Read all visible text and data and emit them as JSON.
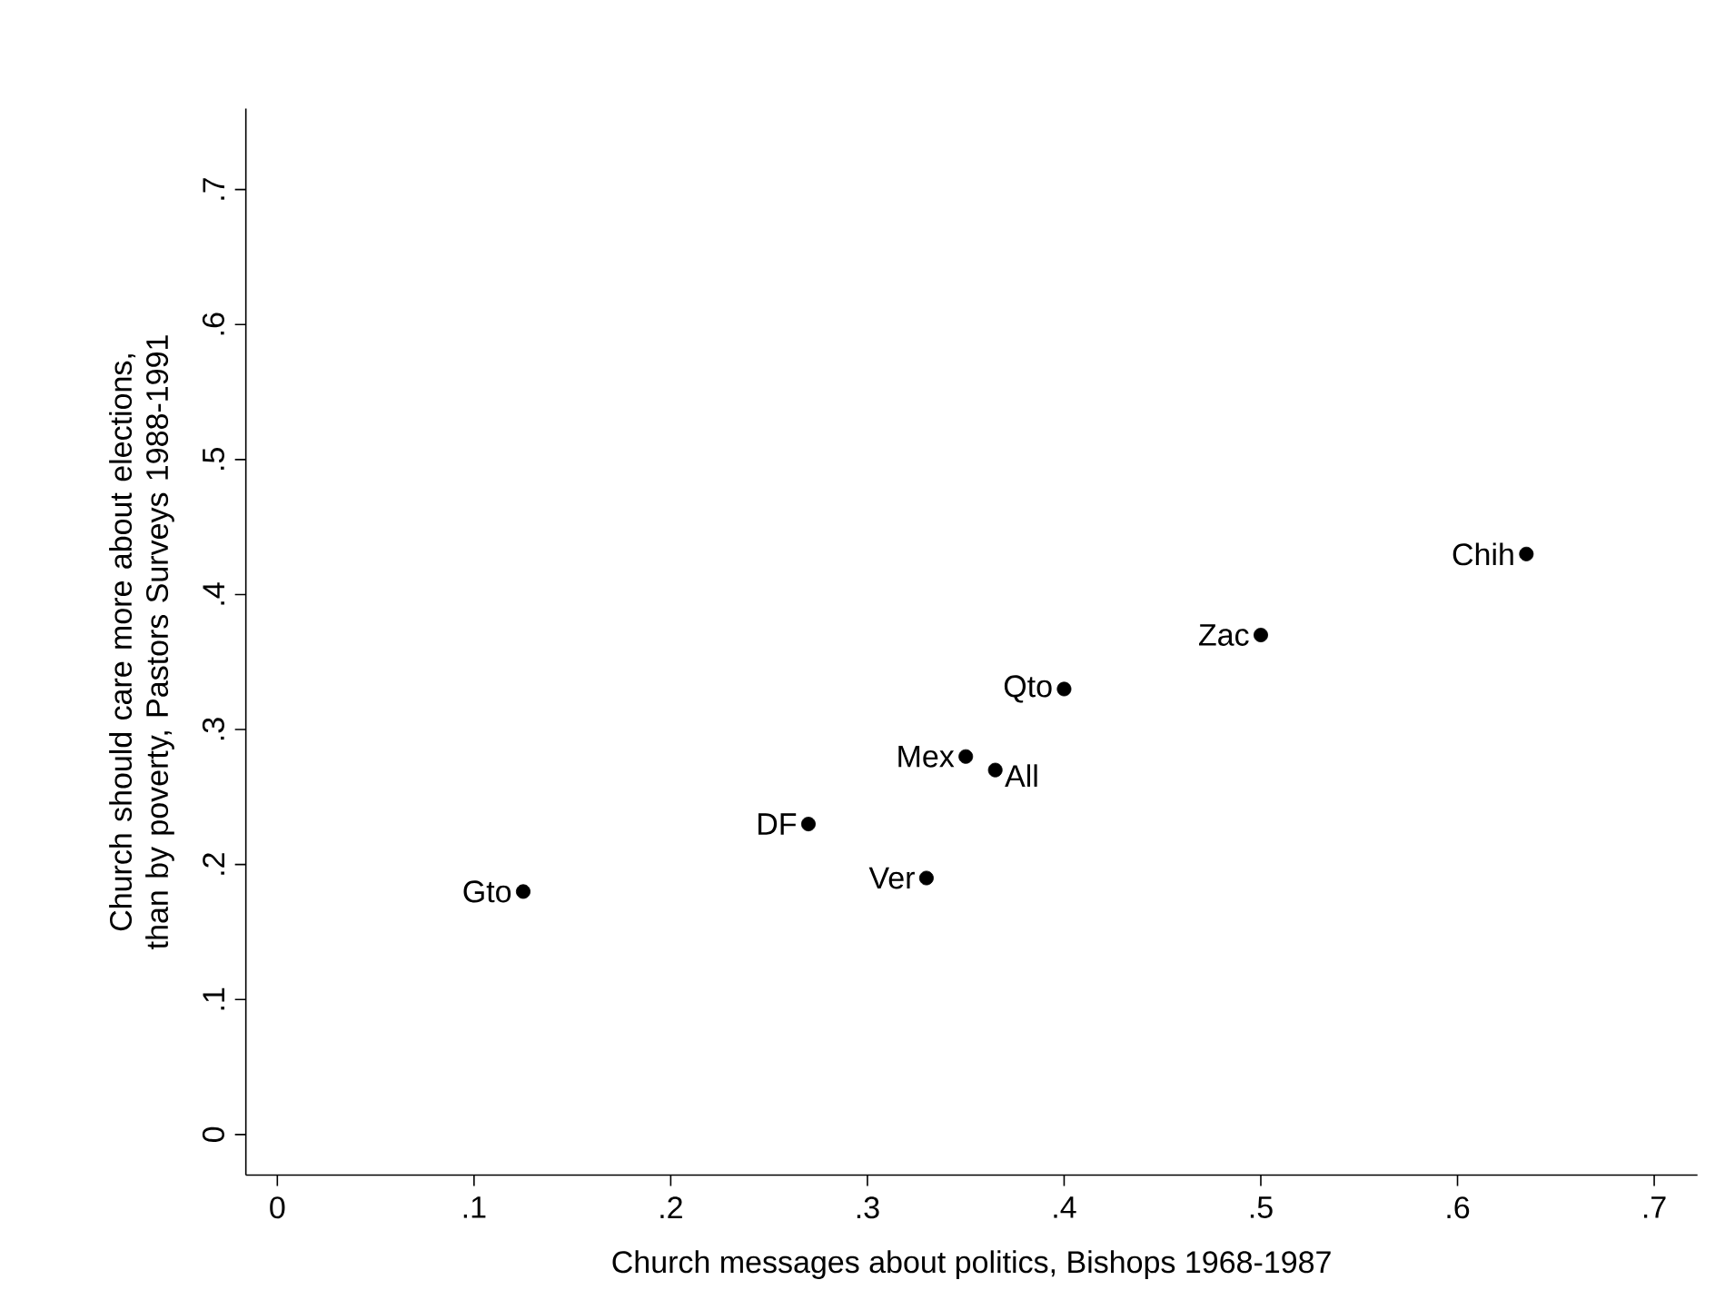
{
  "chart_data": {
    "type": "scatter",
    "xlabel": "Church messages about politics, Bishops 1968-1987",
    "ylabel": "Church should care more about elections, than by poverty, Pastors Surveys 1988-1991",
    "x": [
      0.125,
      0.27,
      0.33,
      0.35,
      0.365,
      0.4,
      0.5,
      0.635
    ],
    "series": [
      {
        "color": "#000000",
        "values": [
          0.18,
          0.23,
          0.19,
          0.28,
          0.27,
          0.33,
          0.37,
          0.43
        ]
      }
    ],
    "annotations": [
      {
        "text": "Gto",
        "x": 0.125,
        "y": 0.18
      },
      {
        "text": "DF",
        "x": 0.27,
        "y": 0.23
      },
      {
        "text": "Ver",
        "x": 0.33,
        "y": 0.19
      },
      {
        "text": "Mex",
        "x": 0.35,
        "y": 0.28
      },
      {
        "text": "All",
        "x": 0.365,
        "y": 0.27
      },
      {
        "text": "Qto",
        "x": 0.4,
        "y": 0.33
      },
      {
        "text": "Zac",
        "x": 0.5,
        "y": 0.37
      },
      {
        "text": "Chih",
        "x": 0.635,
        "y": 0.43
      }
    ],
    "marker": "circle",
    "grid": false,
    "xlim": [
      -0.016,
      0.722
    ],
    "ylim": [
      -0.03,
      0.76
    ],
    "xticks": [
      0,
      {
        "value": 0.1,
        "label": ".1"
      },
      {
        "value": 0.2,
        "label": ".2"
      },
      {
        "value": 0.3,
        "label": ".3"
      },
      {
        "value": 0.4,
        "label": ".4"
      },
      {
        "value": 0.5,
        "label": ".5"
      },
      {
        "value": 0.6,
        "label": ".6"
      },
      {
        "value": 0.7,
        "label": ".7"
      }
    ],
    "yticks": [
      0,
      {
        "value": 0.1,
        "label": ".1"
      },
      {
        "value": 0.2,
        "label": ".2"
      },
      {
        "value": 0.3,
        "label": ".3"
      },
      {
        "value": 0.4,
        "label": ".4"
      },
      {
        "value": 0.5,
        "label": ".5"
      },
      {
        "value": 0.6,
        "label": ".6"
      },
      {
        "value": 0.7,
        "label": ".7"
      }
    ]
  }
}
